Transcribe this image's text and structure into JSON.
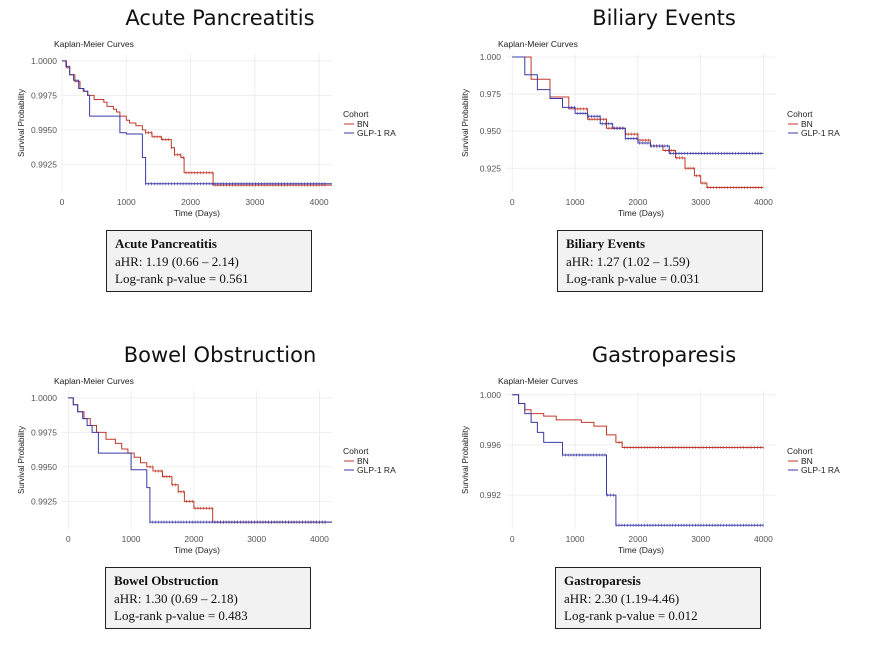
{
  "chart_data": [
    {
      "type": "line",
      "title": "Acute Pancreatitis",
      "subtitle": "Kaplan-Meier Curves",
      "xlabel": "Time (Days)",
      "ylabel": "Survival Probability",
      "xlim": [
        0,
        4200
      ],
      "ylim": [
        0.9905,
        1.0005
      ],
      "xticks": [
        0,
        1000,
        2000,
        3000,
        4000
      ],
      "yticks": [
        0.9925,
        0.995,
        0.9975,
        1.0
      ],
      "ytick_labels": [
        "0.9925",
        "0.9950",
        "0.9975",
        "1.0000"
      ],
      "legend": {
        "title": "Cohort",
        "position": "right"
      },
      "series": [
        {
          "name": "BN",
          "color": "#c0392b",
          "x": [
            0,
            70,
            120,
            200,
            280,
            330,
            400,
            500,
            650,
            700,
            800,
            850,
            900,
            1000,
            1050,
            1150,
            1250,
            1300,
            1400,
            1550,
            1700,
            1750,
            1850,
            1900,
            2350,
            4200
          ],
          "y": [
            1.0,
            0.9995,
            0.999,
            0.9985,
            0.998,
            0.9978,
            0.9975,
            0.9972,
            0.997,
            0.9967,
            0.9965,
            0.9963,
            0.996,
            0.9957,
            0.9955,
            0.9953,
            0.995,
            0.9948,
            0.9945,
            0.9943,
            0.9937,
            0.9932,
            0.993,
            0.9919,
            0.991,
            0.991
          ],
          "censored_range": [
            1300,
            4100
          ]
        },
        {
          "name": "GLP-1 RA",
          "color": "#3a3aa8",
          "x": [
            0,
            60,
            120,
            180,
            260,
            340,
            400,
            430,
            900,
            1000,
            1250,
            1300,
            4200
          ],
          "y": [
            1.0,
            0.9996,
            0.999,
            0.9986,
            0.998,
            0.9978,
            0.9975,
            0.996,
            0.9948,
            0.9947,
            0.993,
            0.9911,
            0.9911
          ],
          "censored_range": [
            1300,
            4100
          ]
        }
      ],
      "stats": {
        "heading": "Acute Pancreatitis",
        "ahr": "aHR: 1.19 (0.66 – 2.14)",
        "pvalue": "Log-rank p-value = 0.561"
      }
    },
    {
      "type": "line",
      "title": "Biliary Events",
      "subtitle": "Kaplan-Meier Curves",
      "xlabel": "Time (Days)",
      "ylabel": "Survival Probability",
      "xlim": [
        -100,
        4200
      ],
      "ylim": [
        0.909,
        1.002
      ],
      "xticks": [
        0,
        1000,
        2000,
        3000,
        4000
      ],
      "yticks": [
        0.925,
        0.95,
        0.975,
        1.0
      ],
      "ytick_labels": [
        "0.925",
        "0.950",
        "0.975",
        "1.000"
      ],
      "legend": {
        "title": "Cohort",
        "position": "right"
      },
      "series": [
        {
          "name": "BN",
          "color": "#c0392b",
          "x": [
            0,
            300,
            600,
            900,
            1200,
            1500,
            1800,
            2000,
            2200,
            2400,
            2600,
            2750,
            2900,
            3000,
            3100,
            4000
          ],
          "y": [
            1.0,
            0.985,
            0.973,
            0.965,
            0.958,
            0.952,
            0.948,
            0.944,
            0.94,
            0.937,
            0.932,
            0.925,
            0.92,
            0.915,
            0.912,
            0.912
          ],
          "censored_range": [
            1000,
            4000
          ]
        },
        {
          "name": "GLP-1 RA",
          "color": "#3a3aa8",
          "x": [
            0,
            200,
            400,
            600,
            800,
            1000,
            1200,
            1400,
            1600,
            1800,
            2000,
            2200,
            2500,
            4000
          ],
          "y": [
            1.0,
            0.988,
            0.978,
            0.972,
            0.966,
            0.962,
            0.96,
            0.955,
            0.952,
            0.945,
            0.942,
            0.94,
            0.935,
            0.935
          ],
          "censored_range": [
            900,
            4000
          ]
        }
      ],
      "stats": {
        "heading": "Biliary Events",
        "ahr": "aHR: 1.27 (1.02 – 1.59)",
        "pvalue": "Log-rank p-value = 0.031"
      }
    },
    {
      "type": "line",
      "title": "Bowel Obstruction",
      "subtitle": "Kaplan-Meier Curves",
      "xlabel": "Time (Days)",
      "ylabel": "Survival Probability",
      "xlim": [
        -100,
        4200
      ],
      "ylim": [
        0.9905,
        1.0005
      ],
      "xticks": [
        0,
        1000,
        2000,
        3000,
        4000
      ],
      "yticks": [
        0.9925,
        0.995,
        0.9975,
        1.0
      ],
      "ytick_labels": [
        "0.9925",
        "0.9950",
        "0.9975",
        "1.0000"
      ],
      "legend": {
        "title": "Cohort",
        "position": "right"
      },
      "series": [
        {
          "name": "BN",
          "color": "#c0392b",
          "x": [
            0,
            80,
            150,
            250,
            350,
            450,
            600,
            750,
            850,
            950,
            1050,
            1150,
            1250,
            1350,
            1500,
            1650,
            1750,
            1850,
            2000,
            2300,
            4200
          ],
          "y": [
            1.0,
            0.9995,
            0.999,
            0.9985,
            0.998,
            0.9975,
            0.997,
            0.9967,
            0.9963,
            0.996,
            0.9957,
            0.9953,
            0.995,
            0.9947,
            0.9943,
            0.9937,
            0.9932,
            0.9925,
            0.992,
            0.991,
            0.991
          ],
          "censored_range": [
            1300,
            4100
          ]
        },
        {
          "name": "GLP-1 RA",
          "color": "#3a3aa8",
          "x": [
            0,
            80,
            150,
            230,
            300,
            380,
            480,
            1000,
            1250,
            1300,
            4200
          ],
          "y": [
            1.0,
            0.9995,
            0.999,
            0.9985,
            0.998,
            0.9975,
            0.996,
            0.9948,
            0.9935,
            0.991,
            0.991
          ],
          "censored_range": [
            1300,
            4100
          ]
        }
      ],
      "stats": {
        "heading": "Bowel Obstruction",
        "ahr": "aHR: 1.30 (0.69 – 2.18)",
        "pvalue": "Log-rank p-value = 0.483"
      }
    },
    {
      "type": "line",
      "title": "Gastroparesis",
      "subtitle": "Kaplan-Meier Curves",
      "xlabel": "Time (Days)",
      "ylabel": "Survival Probability",
      "xlim": [
        -100,
        4200
      ],
      "ylim": [
        0.9893,
        1.0003
      ],
      "xticks": [
        0,
        1000,
        2000,
        3000,
        4000
      ],
      "yticks": [
        0.992,
        0.996,
        1.0
      ],
      "ytick_labels": [
        "0.992",
        "0.996",
        "1.000"
      ],
      "legend": {
        "title": "Cohort",
        "position": "right"
      },
      "series": [
        {
          "name": "BN",
          "color": "#c0392b",
          "x": [
            0,
            100,
            200,
            300,
            500,
            700,
            900,
            1100,
            1300,
            1500,
            1650,
            1750,
            4000
          ],
          "y": [
            1.0,
            0.9993,
            0.9988,
            0.9985,
            0.9983,
            0.998,
            0.998,
            0.9978,
            0.9975,
            0.9968,
            0.9962,
            0.9958,
            0.9958
          ],
          "censored_range": [
            1700,
            4000
          ]
        },
        {
          "name": "GLP-1 RA",
          "color": "#3a3aa8",
          "x": [
            0,
            100,
            200,
            300,
            400,
            500,
            600,
            800,
            1000,
            1500,
            1600,
            1650,
            4000
          ],
          "y": [
            1.0,
            0.9993,
            0.9985,
            0.9978,
            0.997,
            0.9962,
            0.9962,
            0.9952,
            0.9952,
            0.992,
            0.992,
            0.9896,
            0.9896
          ],
          "censored_range": [
            800,
            4000
          ]
        }
      ],
      "stats": {
        "heading": "Gastroparesis",
        "ahr": "aHR: 2.30 (1.19-4.46)",
        "pvalue": "Log-rank p-value = 0.012"
      }
    }
  ]
}
